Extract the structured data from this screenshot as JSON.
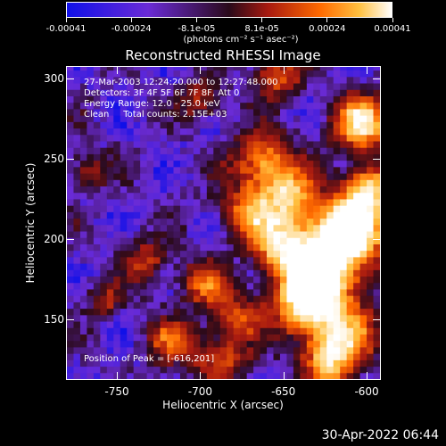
{
  "colorbar": {
    "ticks": [
      "-0.00041",
      "-0.00024",
      "-8.1e-05",
      "8.1e-05",
      "0.00024",
      "0.00041"
    ],
    "unit": "(photons cm⁻² s⁻¹ asec⁻²)"
  },
  "annotations": {
    "time": "27-Mar-2003 12:24:20.000 to 12:27:48.000",
    "detectors": "Detectors: 3F 4F 5F 6F 7F 8F, Att 0",
    "energy": "Energy Range: 12.0 - 25.0 keV",
    "method": "Clean     Total counts: 2.15E+03",
    "peak": "Position of Peak = [-616,201]"
  },
  "timestamp": "30-Apr-2022 06:44",
  "chart_data": {
    "type": "heatmap",
    "title": "Reconstructed RHESSI Image",
    "xlabel": "Heliocentric X (arcsec)",
    "ylabel": "Heliocentric Y (arcsec)",
    "xlim": [
      -780,
      -592
    ],
    "ylim": [
      113,
      307
    ],
    "x_ticks": [
      -750,
      -700,
      -650,
      -600
    ],
    "y_ticks": [
      150,
      200,
      250,
      300
    ],
    "x_tick_labels": [
      "-750",
      "-700",
      "-650",
      "-600"
    ],
    "y_tick_labels": [
      "150",
      "200",
      "250",
      "300"
    ],
    "colorbar_range": [
      -0.00041,
      0.00041
    ],
    "colormap": [
      "#1010e8",
      "#6a2bd6",
      "#2a0a1a",
      "#a81a10",
      "#ff6a00",
      "#ffc040",
      "#ffffff"
    ],
    "peak": [
      -616,
      201
    ],
    "pixel_size_arcsec": 4
  }
}
